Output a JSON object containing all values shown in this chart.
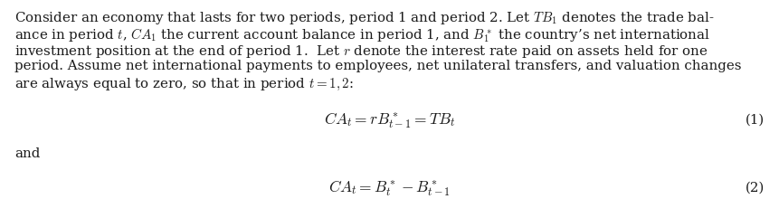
{
  "background_color": "#ffffff",
  "text_color": "#1a1a1a",
  "para_lines": [
    "Consider an economy that lasts for two periods, period 1 and period 2. Let $TB_1$ denotes the trade bal-",
    "ance in period $t$, $CA_1$ the current account balance in period 1, and $B_1^*$ the country’s net international",
    "investment position at the end of period 1.  Let $r$ denote the interest rate paid on assets held for one",
    "period. Assume net international payments to employees, net unilateral transfers, and valuation changes",
    "are always equal to zero, so that in period $t = 1, 2$:"
  ],
  "eq1": "$CA_t = rB^*_{t-1} = TB_t$",
  "eq1_label": "(1)",
  "eq2": "$CA_t = B^*_t - B^*_{t-1}$",
  "eq2_label": "(2)",
  "and_text": "and",
  "font_size_text": 10.8,
  "font_size_eq": 12.5,
  "font_size_label": 10.8,
  "fig_width": 8.61,
  "fig_height": 2.41,
  "dpi": 100
}
